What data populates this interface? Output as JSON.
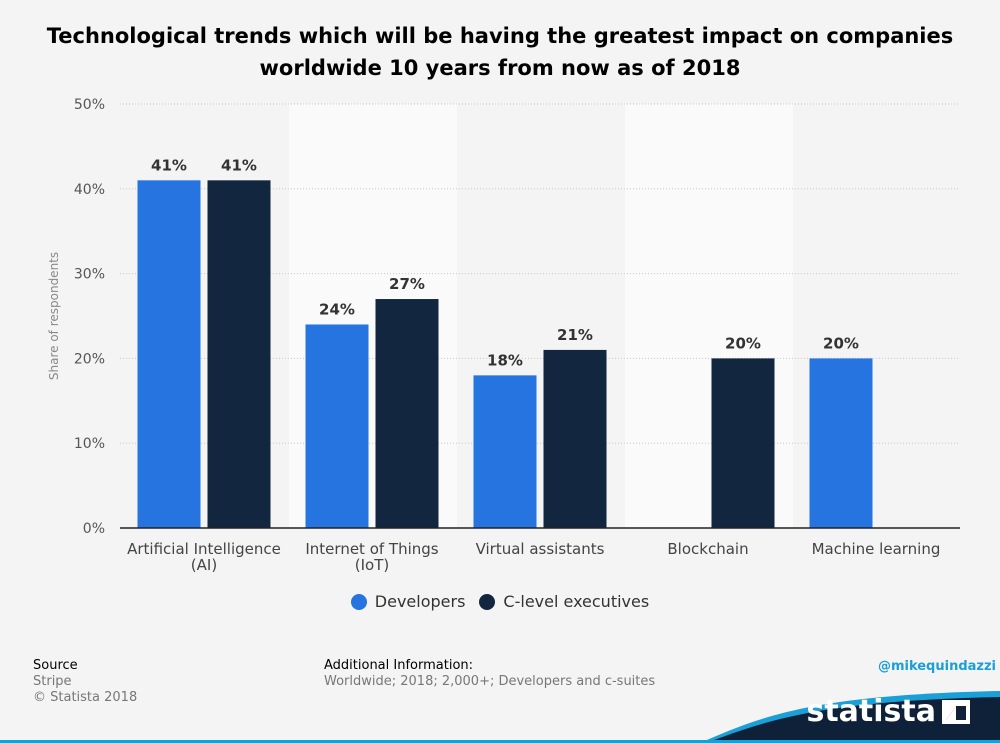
{
  "title_lines": [
    "Technological trends which will be having the greatest impact on companies",
    "worldwide 10 years from now as of 2018"
  ],
  "chart_data": {
    "type": "bar",
    "categories": [
      [
        "Artificial Intelligence",
        "(AI)"
      ],
      [
        "Internet of Things",
        "(IoT)"
      ],
      [
        "Virtual assistants"
      ],
      [
        "Blockchain"
      ],
      [
        "Machine learning"
      ]
    ],
    "series": [
      {
        "name": "Developers",
        "color": "#2574e0",
        "values": [
          41,
          24,
          18,
          null,
          20
        ],
        "labels": [
          "41%",
          "24%",
          "18%",
          "",
          "20%"
        ]
      },
      {
        "name": "C-level executives",
        "color": "#12263f",
        "values": [
          41,
          27,
          21,
          20,
          null
        ],
        "labels": [
          "41%",
          "27%",
          "21%",
          "20%",
          ""
        ]
      }
    ],
    "ylabel": "Share of respondents",
    "ylim": [
      0,
      50
    ],
    "yticks": [
      0,
      10,
      20,
      30,
      40,
      50
    ],
    "ytick_labels": [
      "0%",
      "10%",
      "20%",
      "30%",
      "40%",
      "50%"
    ],
    "grid": true,
    "legend_position": "bottom-center"
  },
  "footer": {
    "source_head": "Source",
    "source_lines": [
      "Stripe",
      "© Statista 2018"
    ],
    "info_head": "Additional Information:",
    "info_lines": [
      "Worldwide; 2018; 2,000+; Developers and c-suites"
    ],
    "credit": "@mikequindazzi",
    "brand": "statista"
  }
}
